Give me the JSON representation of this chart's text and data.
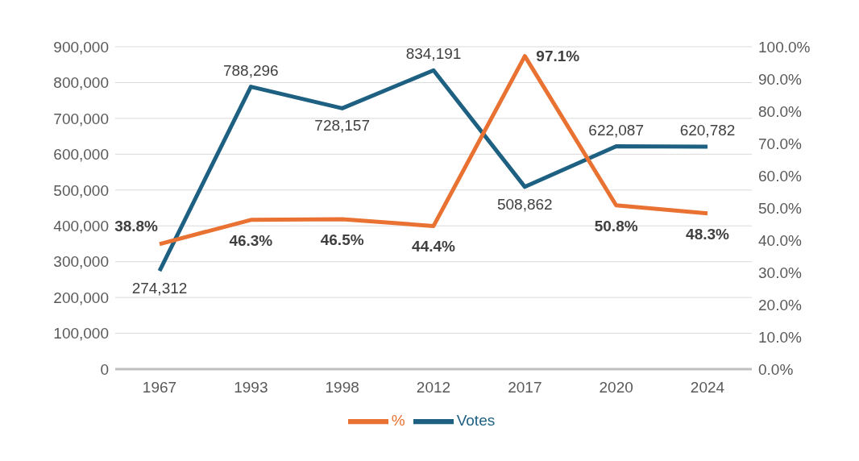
{
  "chart_data": {
    "type": "line",
    "categories": [
      "1967",
      "1993",
      "1998",
      "2012",
      "2017",
      "2020",
      "2024"
    ],
    "series": [
      {
        "name": "Votes",
        "color": "#1d6082",
        "values": [
          274312,
          788296,
          728157,
          834191,
          508862,
          622087,
          620782
        ],
        "value_labels": [
          "274,312",
          "788,296",
          "728,157",
          "834,191",
          "508,862",
          "622,087",
          "620,782"
        ]
      },
      {
        "name": "%",
        "color": "#e97132",
        "axis": "y2",
        "values": [
          38.8,
          46.3,
          46.5,
          44.4,
          97.1,
          50.8,
          48.3
        ],
        "value_labels": [
          "38.8%",
          "46.3%",
          "46.5%",
          "44.4%",
          "97.1%",
          "50.8%",
          "48.3%"
        ]
      }
    ],
    "ylim": [
      0,
      900000
    ],
    "yticks": [
      {
        "value": 0,
        "label": "0"
      },
      {
        "value": 100000,
        "label": "100,000"
      },
      {
        "value": 200000,
        "label": "200,000"
      },
      {
        "value": 300000,
        "label": "300,000"
      },
      {
        "value": 400000,
        "label": "400,000"
      },
      {
        "value": 500000,
        "label": "500,000"
      },
      {
        "value": 600000,
        "label": "600,000"
      },
      {
        "value": 700000,
        "label": "700,000"
      },
      {
        "value": 800000,
        "label": "800,000"
      },
      {
        "value": 900000,
        "label": "900,000"
      }
    ],
    "y2lim": [
      0,
      100
    ],
    "y2ticks": [
      {
        "value": 0,
        "label": "0.0%"
      },
      {
        "value": 10,
        "label": "10.0%"
      },
      {
        "value": 20,
        "label": "20.0%"
      },
      {
        "value": 30,
        "label": "30.0%"
      },
      {
        "value": 40,
        "label": "40.0%"
      },
      {
        "value": 50,
        "label": "50.0%"
      },
      {
        "value": 60,
        "label": "60.0%"
      },
      {
        "value": 70,
        "label": "70.0%"
      },
      {
        "value": 80,
        "label": "80.0%"
      },
      {
        "value": 90,
        "label": "90.0%"
      },
      {
        "value": 100,
        "label": "100.0%"
      }
    ],
    "grid": "y",
    "legend": "bottom",
    "marker": "none",
    "line_style": "solid"
  }
}
